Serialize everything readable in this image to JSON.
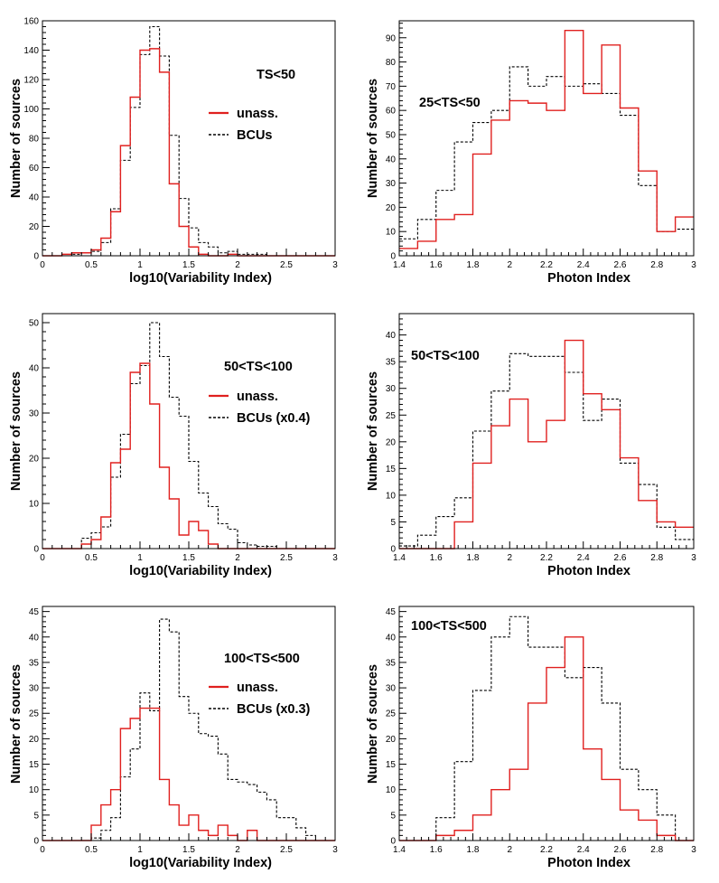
{
  "chart_data": [
    {
      "type": "histogram",
      "panel": "var-ts50",
      "xlabel": "log10(Variability Index)",
      "ylabel": "Number of sources",
      "xlim": [
        0,
        3
      ],
      "ylim": [
        0,
        160
      ],
      "xticks": [
        0,
        0.5,
        1,
        1.5,
        2,
        2.5,
        3
      ],
      "xtick_labels": [
        "0",
        "0.5",
        "1",
        "1.5",
        "2",
        "2.5",
        "3"
      ],
      "yticks": [
        0,
        20,
        40,
        60,
        80,
        100,
        120,
        140,
        160
      ],
      "ytick_labels": [
        "0",
        "20",
        "40",
        "60",
        "80",
        "100",
        "120",
        "140",
        "160"
      ],
      "bin_edges": [
        0,
        0.1,
        0.2,
        0.3,
        0.4,
        0.5,
        0.6,
        0.7,
        0.8,
        0.9,
        1.0,
        1.1,
        1.2,
        1.3,
        1.4,
        1.5,
        1.6,
        1.7,
        1.8,
        1.9,
        2.0,
        2.1,
        2.2,
        2.3,
        2.4,
        2.5,
        2.6,
        2.7,
        2.8,
        2.9,
        3.0
      ],
      "annotation": "TS<50",
      "legend": [
        "unass.",
        "BCUs"
      ],
      "series": [
        {
          "name": "unass.",
          "color": "#e0201f",
          "style": "solid",
          "values": [
            0,
            0,
            1,
            2,
            2,
            4,
            12,
            30,
            75,
            108,
            140,
            141,
            125,
            49,
            20,
            6,
            1,
            0,
            0,
            1,
            0,
            0,
            0,
            0,
            0,
            0,
            0,
            0,
            0,
            0
          ]
        },
        {
          "name": "BCUs",
          "color": "#000000",
          "style": "dashed",
          "values": [
            0,
            0,
            0,
            1,
            2,
            3,
            9,
            32,
            65,
            101,
            137,
            156,
            136,
            82,
            39,
            19,
            9,
            6,
            2,
            3,
            1,
            1,
            1,
            0,
            0,
            0,
            0,
            0,
            0,
            0
          ]
        }
      ]
    },
    {
      "type": "histogram",
      "panel": "pi-ts50",
      "xlabel": "Photon Index",
      "ylabel": "Number of sources",
      "xlim": [
        1.4,
        3
      ],
      "ylim": [
        0,
        97
      ],
      "xticks": [
        1.4,
        1.6,
        1.8,
        2.0,
        2.2,
        2.4,
        2.6,
        2.8,
        3.0
      ],
      "xtick_labels": [
        "1.4",
        "1.6",
        "1.8",
        "2",
        "2.2",
        "2.4",
        "2.6",
        "2.8",
        "3"
      ],
      "yticks": [
        0,
        10,
        20,
        30,
        40,
        50,
        60,
        70,
        80,
        90
      ],
      "ytick_labels": [
        "0",
        "10",
        "20",
        "30",
        "40",
        "50",
        "60",
        "70",
        "80",
        "90"
      ],
      "bin_edges": [
        1.4,
        1.5,
        1.6,
        1.7,
        1.8,
        1.9,
        2.0,
        2.1,
        2.2,
        2.3,
        2.4,
        2.5,
        2.6,
        2.7,
        2.8,
        2.9,
        3.0
      ],
      "annotation": "25<TS<50",
      "series": [
        {
          "name": "unass.",
          "color": "#e0201f",
          "style": "solid",
          "values": [
            3,
            6,
            15,
            17,
            42,
            56,
            64,
            63,
            60,
            93,
            67,
            87,
            61,
            35,
            10,
            16
          ]
        },
        {
          "name": "BCUs",
          "color": "#000000",
          "style": "dashed",
          "values": [
            7,
            15,
            27,
            47,
            55,
            60,
            78,
            70,
            74,
            70,
            71,
            67,
            58,
            29,
            10,
            11
          ]
        }
      ]
    },
    {
      "type": "histogram",
      "panel": "var-ts100",
      "xlabel": "log10(Variability Index)",
      "ylabel": "Number of sources",
      "xlim": [
        0,
        3
      ],
      "ylim": [
        0,
        52
      ],
      "xticks": [
        0,
        0.5,
        1,
        1.5,
        2,
        2.5,
        3
      ],
      "xtick_labels": [
        "0",
        "0.5",
        "1",
        "1.5",
        "2",
        "2.5",
        "3"
      ],
      "yticks": [
        0,
        10,
        20,
        30,
        40,
        50
      ],
      "ytick_labels": [
        "0",
        "10",
        "20",
        "30",
        "40",
        "50"
      ],
      "bin_edges": [
        0,
        0.1,
        0.2,
        0.3,
        0.4,
        0.5,
        0.6,
        0.7,
        0.8,
        0.9,
        1.0,
        1.1,
        1.2,
        1.3,
        1.4,
        1.5,
        1.6,
        1.7,
        1.8,
        1.9,
        2.0,
        2.1,
        2.2,
        2.3,
        2.4,
        2.5,
        2.6,
        2.7,
        2.8,
        2.9,
        3.0
      ],
      "annotation": "50<TS<100",
      "legend": [
        "unass.",
        "BCUs (x0.4)"
      ],
      "series": [
        {
          "name": "unass.",
          "color": "#e0201f",
          "style": "solid",
          "values": [
            0,
            0,
            0,
            0,
            1,
            2,
            7,
            19,
            22,
            39,
            41,
            32,
            18,
            11,
            3,
            6,
            4,
            1,
            0,
            0,
            0,
            0,
            0,
            0,
            0,
            0,
            0,
            0,
            0,
            0
          ]
        },
        {
          "name": "BCUs (x0.4)",
          "color": "#000000",
          "style": "dashed",
          "values": [
            0,
            0,
            0,
            0,
            2.3,
            3.5,
            4.8,
            15.8,
            25.3,
            36.5,
            40.5,
            50,
            42.5,
            33.5,
            29.3,
            19.3,
            12.3,
            9.3,
            5.5,
            4.3,
            1.3,
            0.8,
            0.5,
            0.5,
            0,
            0,
            0,
            0,
            0,
            0
          ]
        }
      ]
    },
    {
      "type": "histogram",
      "panel": "pi-ts100",
      "xlabel": "Photon Index",
      "ylabel": "Number of sources",
      "xlim": [
        1.4,
        3
      ],
      "ylim": [
        0,
        44
      ],
      "xticks": [
        1.4,
        1.6,
        1.8,
        2.0,
        2.2,
        2.4,
        2.6,
        2.8,
        3.0
      ],
      "xtick_labels": [
        "1.4",
        "1.6",
        "1.8",
        "2",
        "2.2",
        "2.4",
        "2.6",
        "2.8",
        "3"
      ],
      "yticks": [
        0,
        5,
        10,
        15,
        20,
        25,
        30,
        35,
        40
      ],
      "ytick_labels": [
        "0",
        "5",
        "10",
        "15",
        "20",
        "25",
        "30",
        "35",
        "40"
      ],
      "bin_edges": [
        1.4,
        1.5,
        1.6,
        1.7,
        1.8,
        1.9,
        2.0,
        2.1,
        2.2,
        2.3,
        2.4,
        2.5,
        2.6,
        2.7,
        2.8,
        2.9,
        3.0
      ],
      "annotation": "50<TS<100",
      "series": [
        {
          "name": "unass.",
          "color": "#e0201f",
          "style": "solid",
          "values": [
            0,
            0,
            0,
            5,
            16,
            23,
            28,
            20,
            24,
            39,
            29,
            26,
            17,
            9,
            5,
            4
          ]
        },
        {
          "name": "BCUs (x0.4)",
          "color": "#000000",
          "style": "dashed",
          "values": [
            0.5,
            2.5,
            6,
            9.5,
            22,
            29.5,
            36.5,
            36,
            36,
            33,
            24,
            28,
            16,
            12,
            4,
            1.7
          ]
        }
      ]
    },
    {
      "type": "histogram",
      "panel": "var-ts500",
      "xlabel": "log10(Variability Index)",
      "ylabel": "Number of sources",
      "xlim": [
        0,
        3
      ],
      "ylim": [
        0,
        46
      ],
      "xticks": [
        0,
        0.5,
        1,
        1.5,
        2,
        2.5,
        3
      ],
      "xtick_labels": [
        "0",
        "0.5",
        "1",
        "1.5",
        "2",
        "2.5",
        "3"
      ],
      "yticks": [
        0,
        5,
        10,
        15,
        20,
        25,
        30,
        35,
        40,
        45
      ],
      "ytick_labels": [
        "0",
        "5",
        "10",
        "15",
        "20",
        "25",
        "30",
        "35",
        "40",
        "45"
      ],
      "bin_edges": [
        0,
        0.1,
        0.2,
        0.3,
        0.4,
        0.5,
        0.6,
        0.7,
        0.8,
        0.9,
        1.0,
        1.1,
        1.2,
        1.3,
        1.4,
        1.5,
        1.6,
        1.7,
        1.8,
        1.9,
        2.0,
        2.1,
        2.2,
        2.3,
        2.4,
        2.5,
        2.6,
        2.7,
        2.8,
        2.9,
        3.0
      ],
      "annotation": "100<TS<500",
      "legend": [
        "unass.",
        "BCUs (x0.3)"
      ],
      "series": [
        {
          "name": "unass.",
          "color": "#e0201f",
          "style": "solid",
          "values": [
            0,
            0,
            0,
            0,
            0,
            3,
            7,
            10,
            22,
            24,
            26,
            26,
            12,
            7,
            3,
            5,
            2,
            1,
            3,
            1,
            0,
            2,
            0,
            0,
            0,
            0,
            0,
            0,
            0,
            0
          ]
        },
        {
          "name": "BCUs (x0.3)",
          "color": "#000000",
          "style": "dashed",
          "values": [
            0,
            0,
            0,
            0,
            0,
            0.5,
            2,
            4.5,
            12.5,
            18,
            29,
            25.5,
            43.5,
            41,
            28.3,
            25,
            21,
            20.5,
            17,
            12,
            11.5,
            11,
            9.5,
            8,
            4.5,
            4.5,
            2.5,
            1,
            0,
            0
          ]
        }
      ]
    },
    {
      "type": "histogram",
      "panel": "pi-ts500",
      "xlabel": "Photon Index",
      "ylabel": "Number of sources",
      "xlim": [
        1.4,
        3
      ],
      "ylim": [
        0,
        46
      ],
      "xticks": [
        1.4,
        1.6,
        1.8,
        2.0,
        2.2,
        2.4,
        2.6,
        2.8,
        3.0
      ],
      "xtick_labels": [
        "1.4",
        "1.6",
        "1.8",
        "2",
        "2.2",
        "2.4",
        "2.6",
        "2.8",
        "3"
      ],
      "yticks": [
        0,
        5,
        10,
        15,
        20,
        25,
        30,
        35,
        40,
        45
      ],
      "ytick_labels": [
        "0",
        "5",
        "10",
        "15",
        "20",
        "25",
        "30",
        "35",
        "40",
        "45"
      ],
      "bin_edges": [
        1.4,
        1.5,
        1.6,
        1.7,
        1.8,
        1.9,
        2.0,
        2.1,
        2.2,
        2.3,
        2.4,
        2.5,
        2.6,
        2.7,
        2.8,
        2.9,
        3.0
      ],
      "annotation": "100<TS<500",
      "series": [
        {
          "name": "unass.",
          "color": "#e0201f",
          "style": "solid",
          "values": [
            0,
            0,
            1,
            2,
            5,
            10,
            14,
            27,
            34,
            40,
            18,
            12,
            6,
            4,
            1,
            0
          ]
        },
        {
          "name": "BCUs (x0.3)",
          "color": "#000000",
          "style": "dashed",
          "values": [
            0,
            0,
            4.5,
            15.5,
            29.5,
            40,
            44,
            38,
            38,
            32,
            34,
            27,
            14,
            10,
            5,
            0
          ]
        }
      ]
    }
  ]
}
